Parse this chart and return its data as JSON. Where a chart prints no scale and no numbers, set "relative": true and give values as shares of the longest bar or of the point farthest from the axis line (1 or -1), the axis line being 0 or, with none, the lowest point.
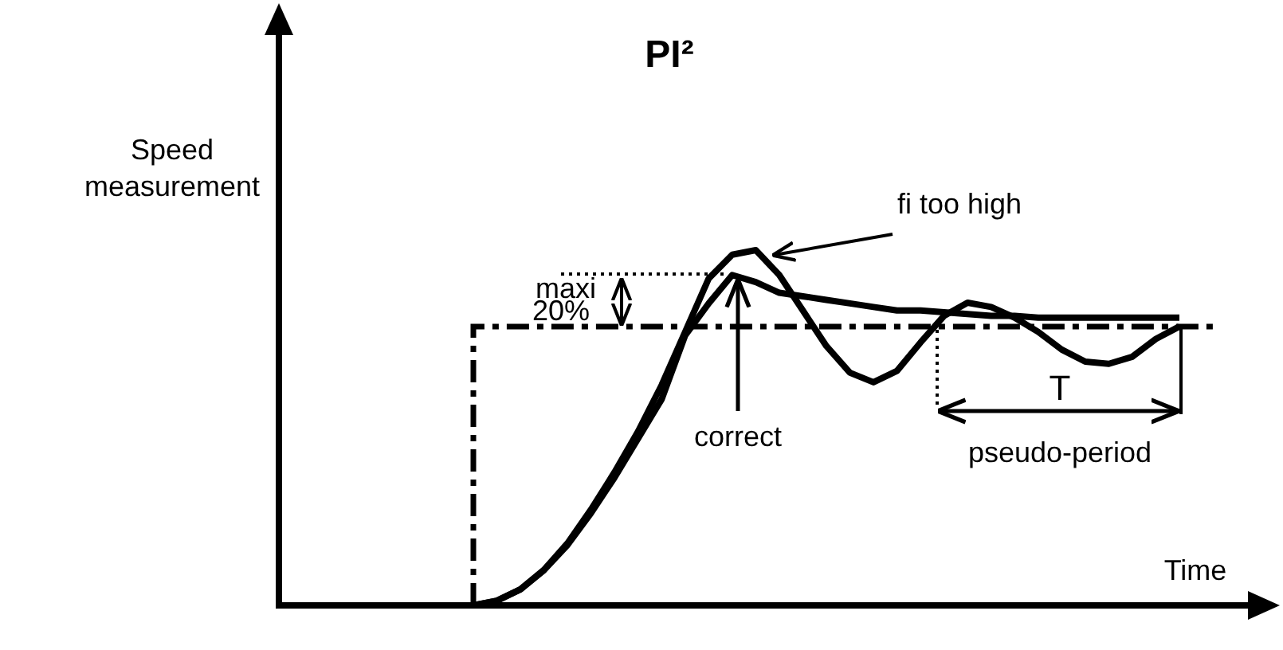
{
  "chart_data": {
    "type": "line",
    "title": "PI²",
    "xlabel": "Time",
    "relative": true,
    "categories": [
      null,
      null,
      null,
      null,
      null,
      null,
      null,
      null,
      null,
      null,
      null,
      null,
      null,
      null,
      null,
      null,
      null,
      null,
      null,
      null,
      null,
      null,
      null,
      null,
      null,
      null,
      null,
      null,
      null,
      null,
      null
    ],
    "series": [
      {
        "name": "correct",
        "color": "#000000",
        "line_style": "solid",
        "values": [
          0,
          0.013,
          0.045,
          0.099,
          0.17,
          0.26,
          0.36,
          0.47,
          0.58,
          0.76,
          0.85,
          0.93,
          0.91,
          0.88,
          0.87,
          0.86,
          0.85,
          0.84,
          0.83,
          0.83,
          0.825,
          0.82,
          0.815,
          0.815,
          0.81,
          0.81,
          0.81,
          0.81,
          0.81,
          0.81,
          0.81
        ]
      },
      {
        "name": "fi too high",
        "color": "#000000",
        "line_style": "solid",
        "values": [
          0,
          0.013,
          0.045,
          0.1,
          0.175,
          0.27,
          0.375,
          0.49,
          0.62,
          0.77,
          0.92,
          0.987,
          1,
          0.93,
          0.83,
          0.73,
          0.655,
          0.628,
          0.66,
          0.74,
          0.815,
          0.852,
          0.84,
          0.81,
          0.77,
          0.72,
          0.686,
          0.68,
          0.7,
          0.75,
          0.785
        ]
      }
    ],
    "ref_lines": [
      {
        "axis": "y",
        "value": 0.785,
        "color": "#000000",
        "line_style": "dashed"
      }
    ],
    "annotations": [
      "maxi",
      "20%",
      "T",
      "pseudo-period",
      "Speed measurement"
    ]
  }
}
